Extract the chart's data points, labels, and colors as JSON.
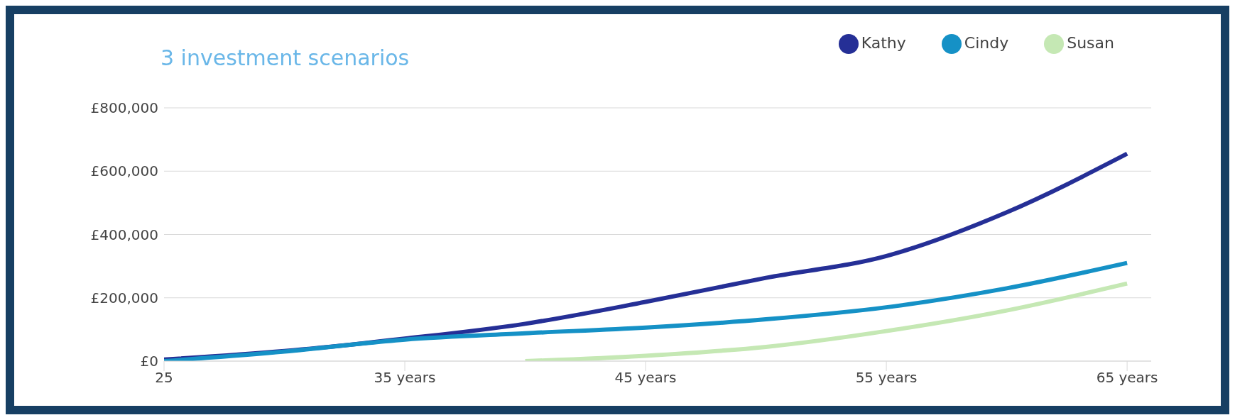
{
  "chart_data": {
    "type": "line",
    "title": "3 investment scenarios",
    "x": [
      25,
      30,
      35,
      40,
      45,
      50,
      55,
      60,
      65
    ],
    "series": [
      {
        "name": "Kathy",
        "color": "#252f96",
        "values": [
          5000,
          32000,
          71000,
          118000,
          187000,
          263000,
          332000,
          470000,
          655000
        ]
      },
      {
        "name": "Cindy",
        "color": "#1591c6",
        "values": [
          0,
          30000,
          68000,
          88000,
          106000,
          132000,
          170000,
          230000,
          310000
        ]
      },
      {
        "name": "Susan",
        "color": "#c5e8b4",
        "values": [
          null,
          null,
          null,
          0,
          17000,
          45000,
          95000,
          160000,
          245000
        ]
      }
    ],
    "xlim": [
      25,
      66
    ],
    "xticks": [
      {
        "value": 25,
        "label": "25"
      },
      {
        "value": 35,
        "label": "35 years"
      },
      {
        "value": 45,
        "label": "45 years"
      },
      {
        "value": 55,
        "label": "55 years"
      },
      {
        "value": 65,
        "label": "65 years"
      }
    ],
    "ylim": [
      0,
      800000
    ],
    "yticks": [
      {
        "value": 0,
        "label": "£0"
      },
      {
        "value": 200000,
        "label": "£200,000"
      },
      {
        "value": 400000,
        "label": "£400,000"
      },
      {
        "value": 600000,
        "label": "£600,000"
      },
      {
        "value": 800000,
        "label": "£800,000"
      }
    ],
    "grid": "y",
    "legend": "top right",
    "marker": "none",
    "line_style": "solid"
  }
}
